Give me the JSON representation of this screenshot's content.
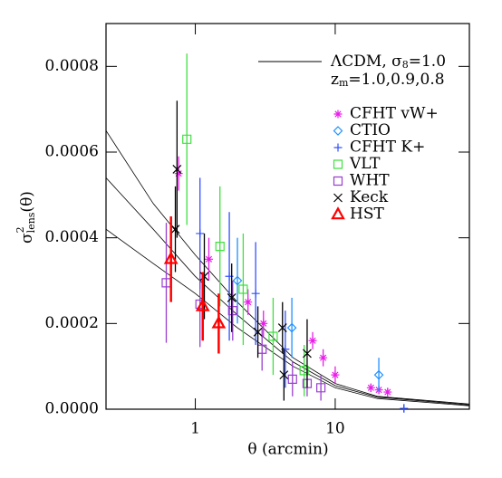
{
  "chart_data": {
    "type": "errorbar",
    "xlabel": "θ (arcmin)",
    "ylabel": {
      "parts": [
        "σ",
        "2",
        "lens",
        "(θ)"
      ]
    },
    "xscale": "log",
    "xlim": [
      0.23,
      91
    ],
    "ylim": [
      0,
      0.0009
    ],
    "xticks": [
      1,
      10
    ],
    "yticks": [
      {
        "value": 0,
        "label": "0.0000"
      },
      {
        "value": 0.0002,
        "label": "0.0002"
      },
      {
        "value": 0.0004,
        "label": "0.0004"
      },
      {
        "value": 0.0006,
        "label": "0.0006"
      },
      {
        "value": 0.0008,
        "label": "0.0008"
      }
    ],
    "theory": {
      "line1": {
        "parts": [
          "ΛCDM, σ",
          "8",
          "=1.0"
        ]
      },
      "line2": {
        "parts": [
          "z",
          "m",
          "=1.0,0.9,0.8"
        ]
      },
      "color": "#000000"
    },
    "curves": [
      {
        "x": [
          0.23,
          0.5,
          1,
          2,
          5,
          10,
          20,
          91
        ],
        "values": [
          0.00065,
          0.00048,
          0.00036,
          0.00025,
          0.00012,
          6e-05,
          3e-05,
          1.2e-05
        ]
      },
      {
        "x": [
          0.23,
          0.5,
          1,
          2,
          5,
          10,
          20,
          91
        ],
        "values": [
          0.00054,
          0.00042,
          0.00031,
          0.00022,
          0.00011,
          5.5e-05,
          2.8e-05,
          1e-05
        ]
      },
      {
        "x": [
          0.23,
          0.5,
          1,
          2,
          5,
          10,
          20,
          91
        ],
        "values": [
          0.00042,
          0.00034,
          0.00027,
          0.00019,
          0.0001,
          5e-05,
          2.5e-05,
          8e-06
        ]
      }
    ],
    "series": [
      {
        "name": "CFHT vW+",
        "marker": "asterisk",
        "color": "#e81ee8",
        "x": [
          0.76,
          1.25,
          2.38,
          3.07,
          6.9,
          8.2,
          10,
          18,
          20.5,
          23.7
        ],
        "values": [
          0.00055,
          0.00035,
          0.00025,
          0.0002,
          0.00016,
          0.00012,
          8e-05,
          5e-05,
          4.5e-05,
          4e-05
        ],
        "errors": [
          4e-05,
          5e-05,
          3e-05,
          3e-05,
          2e-05,
          2e-05,
          2e-05,
          1e-05,
          1e-05,
          1e-05
        ]
      },
      {
        "name": "CTIO",
        "marker": "diamond",
        "color": "#1e90ff",
        "x": [
          2.0,
          4.9,
          20.5
        ],
        "values": [
          0.0003,
          0.00019,
          8e-05
        ],
        "errors": [
          0.0001,
          7e-05,
          4e-05
        ]
      },
      {
        "name": "CFHT K+",
        "marker": "plus",
        "color": "#3050ff",
        "x": [
          1.08,
          1.75,
          2.7,
          4.4,
          31
        ],
        "values": [
          0.00041,
          0.00031,
          0.00027,
          0.00014,
          2e-06
        ],
        "errors": [
          0.00013,
          0.00015,
          0.00012,
          9e-05,
          1e-05
        ]
      },
      {
        "name": "VLT",
        "marker": "square",
        "color": "#40e040",
        "x": [
          0.87,
          1.5,
          2.2,
          3.6,
          6.0
        ],
        "values": [
          0.00063,
          0.00038,
          0.00028,
          0.00017,
          9e-05
        ],
        "errors": [
          0.0002,
          0.00014,
          0.00013,
          9e-05,
          6e-05
        ]
      },
      {
        "name": "WHT",
        "marker": "square",
        "color": "#9a3fd0",
        "x": [
          0.62,
          1.08,
          1.85,
          3.0,
          4.95,
          6.3,
          7.9
        ],
        "values": [
          0.000295,
          0.000245,
          0.00023,
          0.00014,
          7e-05,
          6e-05,
          5e-05
        ],
        "errors": [
          0.00014,
          0.0001,
          7e-05,
          5e-05,
          4e-05,
          3e-05,
          3e-05
        ]
      },
      {
        "name": "Keck",
        "marker": "x",
        "color": "#000000",
        "x": [
          0.72,
          0.74,
          1.16,
          1.82,
          2.8,
          4.2,
          4.3,
          6.3
        ],
        "values": [
          0.00042,
          0.00056,
          0.00031,
          0.00026,
          0.00018,
          0.00019,
          8e-05,
          0.00013
        ],
        "errors": [
          0.0001,
          0.00016,
          0.0001,
          8e-05,
          6e-05,
          6e-05,
          6e-05,
          8e-05
        ]
      },
      {
        "name": "HST",
        "marker": "triangle",
        "color": "#ff0000",
        "x": [
          0.67,
          1.13,
          1.47
        ],
        "values": [
          0.00035,
          0.00024,
          0.0002
        ],
        "errors": [
          0.0001,
          8e-05,
          7e-05
        ]
      }
    ]
  }
}
